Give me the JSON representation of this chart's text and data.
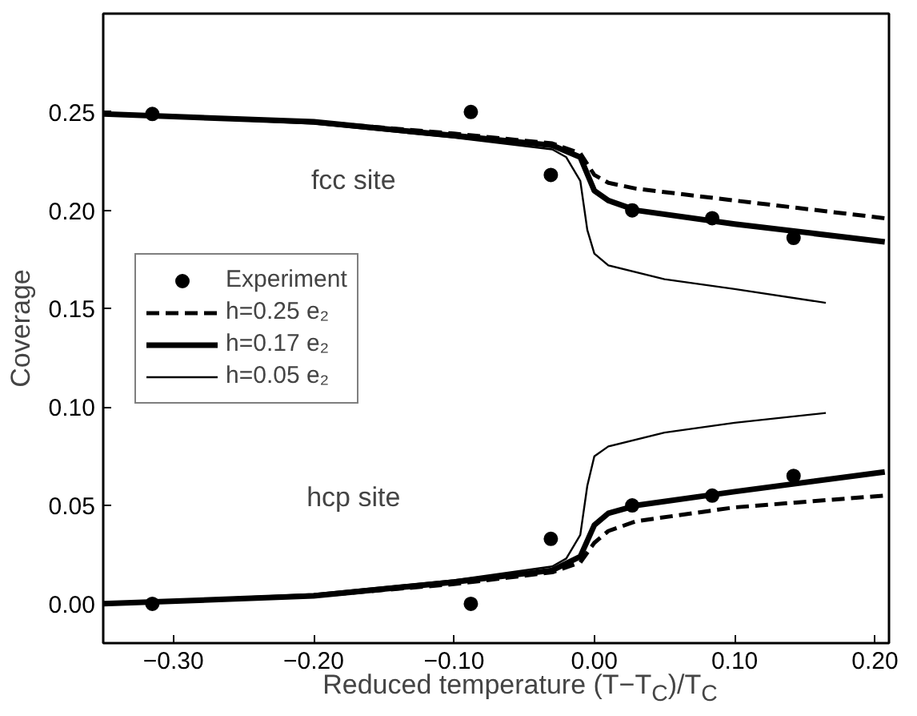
{
  "chart_data": {
    "type": "line",
    "xlabel": "Reduced temperature (T−T$_{C}$)/T$_{C}$",
    "ylabel": "Coverage",
    "xlim": [
      -0.35,
      0.21
    ],
    "ylim": [
      -0.02,
      0.3
    ],
    "xticks": [
      {
        "value": -0.3,
        "label": "−0.30"
      },
      {
        "value": -0.2,
        "label": "−0.20"
      },
      {
        "value": -0.1,
        "label": "−0.10"
      },
      {
        "value": 0,
        "label": "0.00"
      },
      {
        "value": 0.1,
        "label": "0.10"
      },
      {
        "value": 0.2,
        "label": "0.20"
      }
    ],
    "yticks": [
      {
        "value": 0,
        "label": "0.00"
      },
      {
        "value": 0.05,
        "label": "0.05"
      },
      {
        "value": 0.1,
        "label": "0.10"
      },
      {
        "value": 0.15,
        "label": "0.15"
      },
      {
        "value": 0.2,
        "label": "0.20"
      },
      {
        "value": 0.25,
        "label": "0.25"
      }
    ],
    "grid": false,
    "legend": "left",
    "annotations": [
      "fcc site",
      "hcp site"
    ],
    "series": [
      {
        "name": "Experiment",
        "type": "scatter",
        "marker": "circle",
        "color": "#000000",
        "x": [
          -0.315,
          -0.088,
          -0.031,
          0.027,
          0.084,
          0.142,
          null,
          -0.315,
          -0.088,
          -0.031,
          0.027,
          0.084,
          0.142
        ],
        "values": [
          0.249,
          0.25,
          0.218,
          0.2,
          0.196,
          0.186,
          null,
          0.0,
          0.0,
          0.033,
          0.05,
          0.055,
          0.065
        ]
      },
      {
        "name": "h=0.25 e₂",
        "line_style": "dashed",
        "color": "#000000",
        "x": [
          -0.35,
          -0.2,
          -0.1,
          -0.03,
          -0.01,
          0.0,
          0.01,
          0.03,
          0.1,
          0.207,
          null,
          -0.35,
          -0.2,
          -0.1,
          -0.03,
          -0.01,
          0.0,
          0.01,
          0.03,
          0.1,
          0.207
        ],
        "values": [
          0.249,
          0.245,
          0.239,
          0.234,
          0.229,
          0.218,
          0.214,
          0.211,
          0.205,
          0.196,
          null,
          0.0,
          0.004,
          0.01,
          0.016,
          0.021,
          0.031,
          0.037,
          0.042,
          0.049,
          0.055
        ]
      },
      {
        "name": "h=0.17 e₂",
        "line_style": "solid",
        "color": "#000000",
        "x": [
          -0.35,
          -0.2,
          -0.1,
          -0.03,
          -0.01,
          0.0,
          0.01,
          0.03,
          0.1,
          0.207,
          null,
          -0.35,
          -0.2,
          -0.1,
          -0.03,
          -0.01,
          0.0,
          0.01,
          0.03,
          0.1,
          0.207
        ],
        "values": [
          0.249,
          0.245,
          0.238,
          0.233,
          0.227,
          0.21,
          0.205,
          0.2,
          0.193,
          0.184,
          null,
          0.0,
          0.004,
          0.011,
          0.017,
          0.024,
          0.04,
          0.046,
          0.05,
          0.057,
          0.067
        ]
      },
      {
        "name": "h=0.05 e₂",
        "line_style": "solid",
        "color": "#000000",
        "x": [
          -0.35,
          -0.2,
          -0.1,
          -0.03,
          -0.02,
          -0.01,
          -0.005,
          0.0,
          0.01,
          0.05,
          0.1,
          0.165,
          null,
          -0.35,
          -0.2,
          -0.1,
          -0.03,
          -0.02,
          -0.01,
          -0.005,
          0.0,
          0.01,
          0.05,
          0.1,
          0.165
        ],
        "values": [
          0.249,
          0.244,
          0.237,
          0.231,
          0.227,
          0.215,
          0.19,
          0.178,
          0.172,
          0.165,
          0.16,
          0.153,
          null,
          0.0,
          0.005,
          0.012,
          0.019,
          0.023,
          0.035,
          0.06,
          0.075,
          0.08,
          0.087,
          0.092,
          0.097
        ]
      }
    ]
  }
}
